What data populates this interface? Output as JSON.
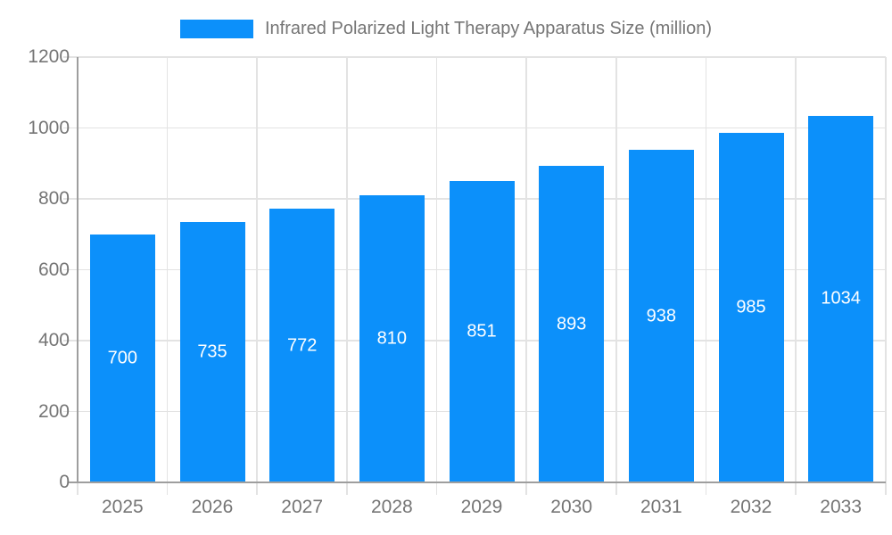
{
  "legend": {
    "label": "Infrared Polarized Light Therapy Apparatus Size (million)"
  },
  "chart_data": {
    "type": "bar",
    "title": "Infrared Polarized Light Therapy Apparatus Size (million)",
    "categories": [
      "2025",
      "2026",
      "2027",
      "2028",
      "2029",
      "2030",
      "2031",
      "2032",
      "2033"
    ],
    "values": [
      700,
      735,
      772,
      810,
      851,
      893,
      938,
      985,
      1034
    ],
    "xlabel": "",
    "ylabel": "",
    "ylim": [
      0,
      1200
    ],
    "yticks": [
      0,
      200,
      400,
      600,
      800,
      1000,
      1200
    ],
    "grid": true,
    "legend_position": "top",
    "colors": {
      "bar": "#0C90FA",
      "grid": "#E3E3E3",
      "axis": "#9E9E9E",
      "text": "#757575",
      "value_label": "#FFFFFF"
    }
  }
}
